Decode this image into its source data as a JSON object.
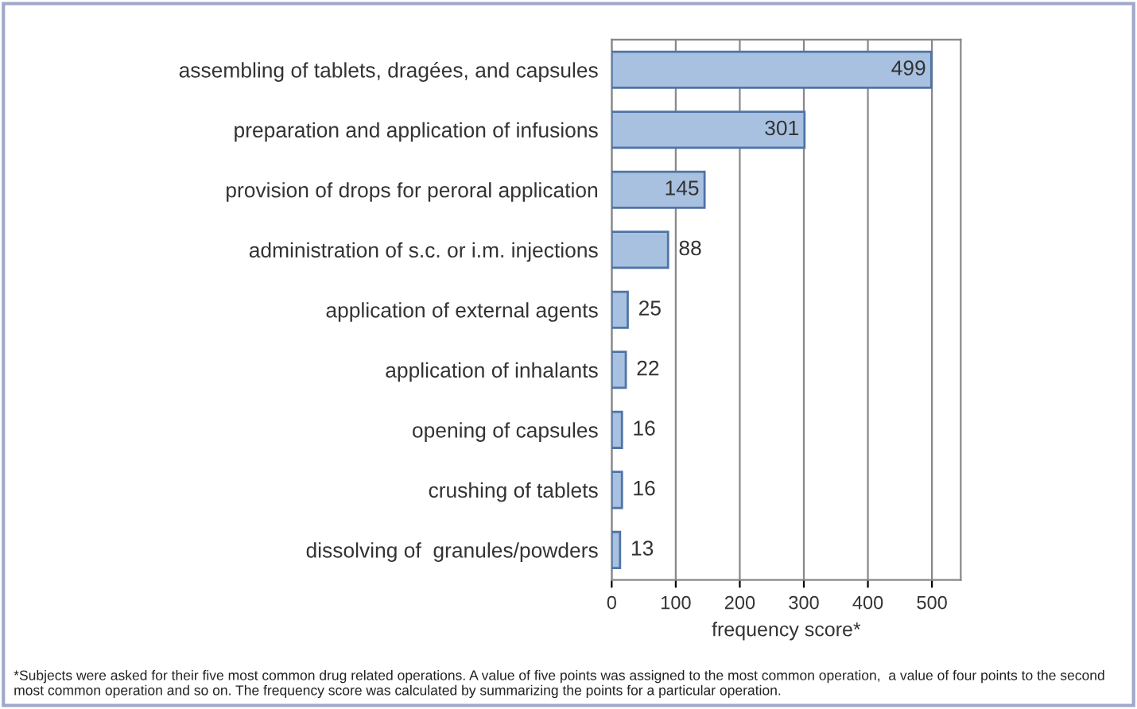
{
  "chart_data": {
    "type": "bar",
    "orientation": "horizontal",
    "xlabel": "frequency score*",
    "categories": [
      "assembling of tablets, dragées, and capsules",
      "preparation and application of infusions",
      "provision of drops for peroral application",
      "administration of s.c. or i.m. injections",
      "application of external agents",
      "application of inhalants",
      "opening of capsules",
      "crushing of tablets",
      "dissolving of  granules/powders"
    ],
    "values": [
      499,
      301,
      145,
      88,
      25,
      22,
      16,
      16,
      13
    ],
    "color": "#a9c1e0",
    "data_labels": true,
    "xlim": [
      0,
      545
    ],
    "xticks": [
      0,
      100,
      200,
      300,
      400,
      500
    ],
    "grid": "x",
    "annotations": [
      "*Subjects were asked for their five most common drug related operations. A value of five points was assigned to the most common operation,  a value of four points to the second most common operation and so on. The frequency score was calculated by summarizing the points for a particular operation."
    ]
  }
}
